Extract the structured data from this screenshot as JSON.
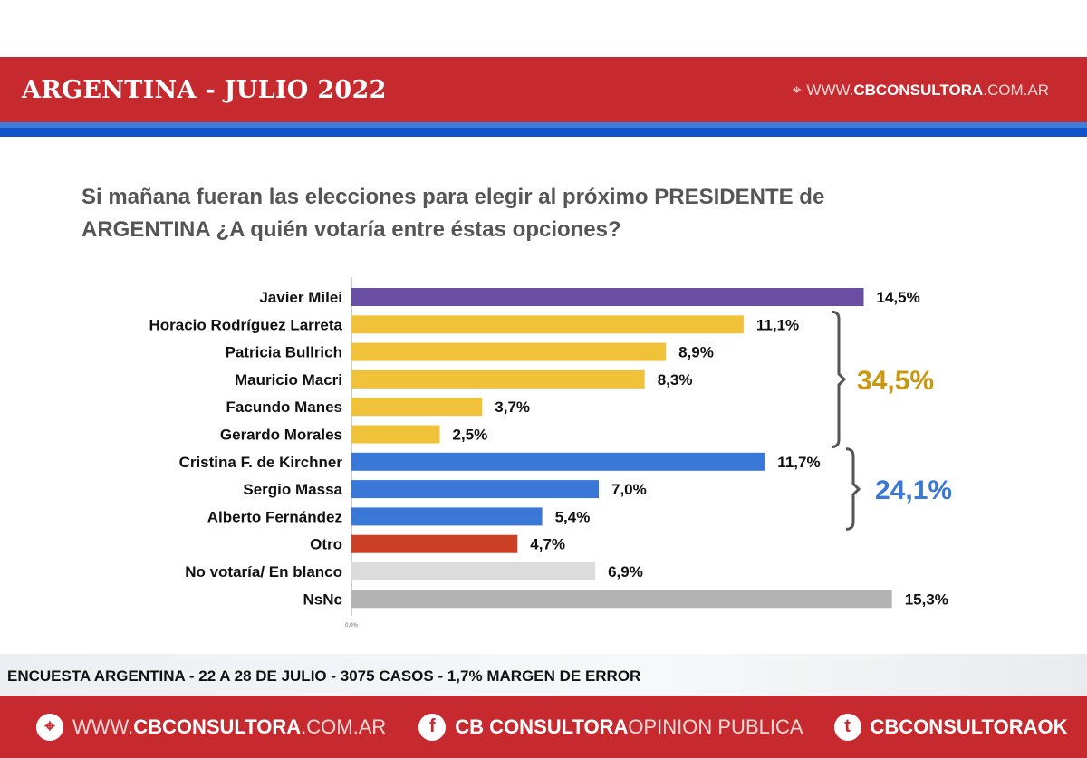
{
  "header": {
    "title": "ARGENTINA - JULIO 2022",
    "web_prefix": "WWW.",
    "web_bold": "CBCONSULTORA",
    "web_suffix": ".COM.AR"
  },
  "question": "Si mañana fueran las elecciones para elegir al próximo PRESIDENTE de ARGENTINA ¿A quién votaría entre éstas opciones?",
  "chart_data": {
    "type": "bar",
    "orientation": "horizontal",
    "categories": [
      "Javier Milei",
      "Horacio Rodríguez Larreta",
      "Patricia Bullrich",
      "Mauricio Macri",
      "Facundo Manes",
      "Gerardo Morales",
      "Cristina F. de Kirchner",
      "Sergio Massa",
      "Alberto Fernández",
      "Otro",
      "No votaría/ En blanco",
      "NsNc"
    ],
    "values": [
      14.5,
      11.1,
      8.9,
      8.3,
      3.7,
      2.5,
      11.7,
      7.0,
      5.4,
      4.7,
      6.9,
      15.3
    ],
    "data_labels": [
      "14,5%",
      "11,1%",
      "8,9%",
      "8,3%",
      "3,7%",
      "2,5%",
      "11,7%",
      "7,0%",
      "5,4%",
      "4,7%",
      "6,9%",
      "15,3%"
    ],
    "colors": [
      "#6a4ea3",
      "#f0c23a",
      "#f0c23a",
      "#f0c23a",
      "#f0c23a",
      "#f0c23a",
      "#3a78d8",
      "#3a78d8",
      "#3a78d8",
      "#cc3f27",
      "#dcdcdc",
      "#b3b3b3"
    ],
    "axis_tick_label": "0,0%",
    "xlim": [
      0,
      15.3
    ],
    "groups": [
      {
        "label": "34,5%",
        "from": 1,
        "to": 5,
        "color": "#c9960c"
      },
      {
        "label": "24,1%",
        "from": 6,
        "to": 8,
        "color": "#3a78d8"
      }
    ]
  },
  "footer": {
    "note": "ENCUESTA ARGENTINA - 22 A 28  DE JULIO - 3075 CASOS - 1,7% MARGEN DE ERROR",
    "web_prefix": "WWW.",
    "web_bold": "CBCONSULTORA",
    "web_suffix": ".COM.AR",
    "fb_bold": "CB CONSULTORA",
    "fb_suffix": " OPINION PUBLICA",
    "twitter": "CBCONSULTORAOK"
  }
}
